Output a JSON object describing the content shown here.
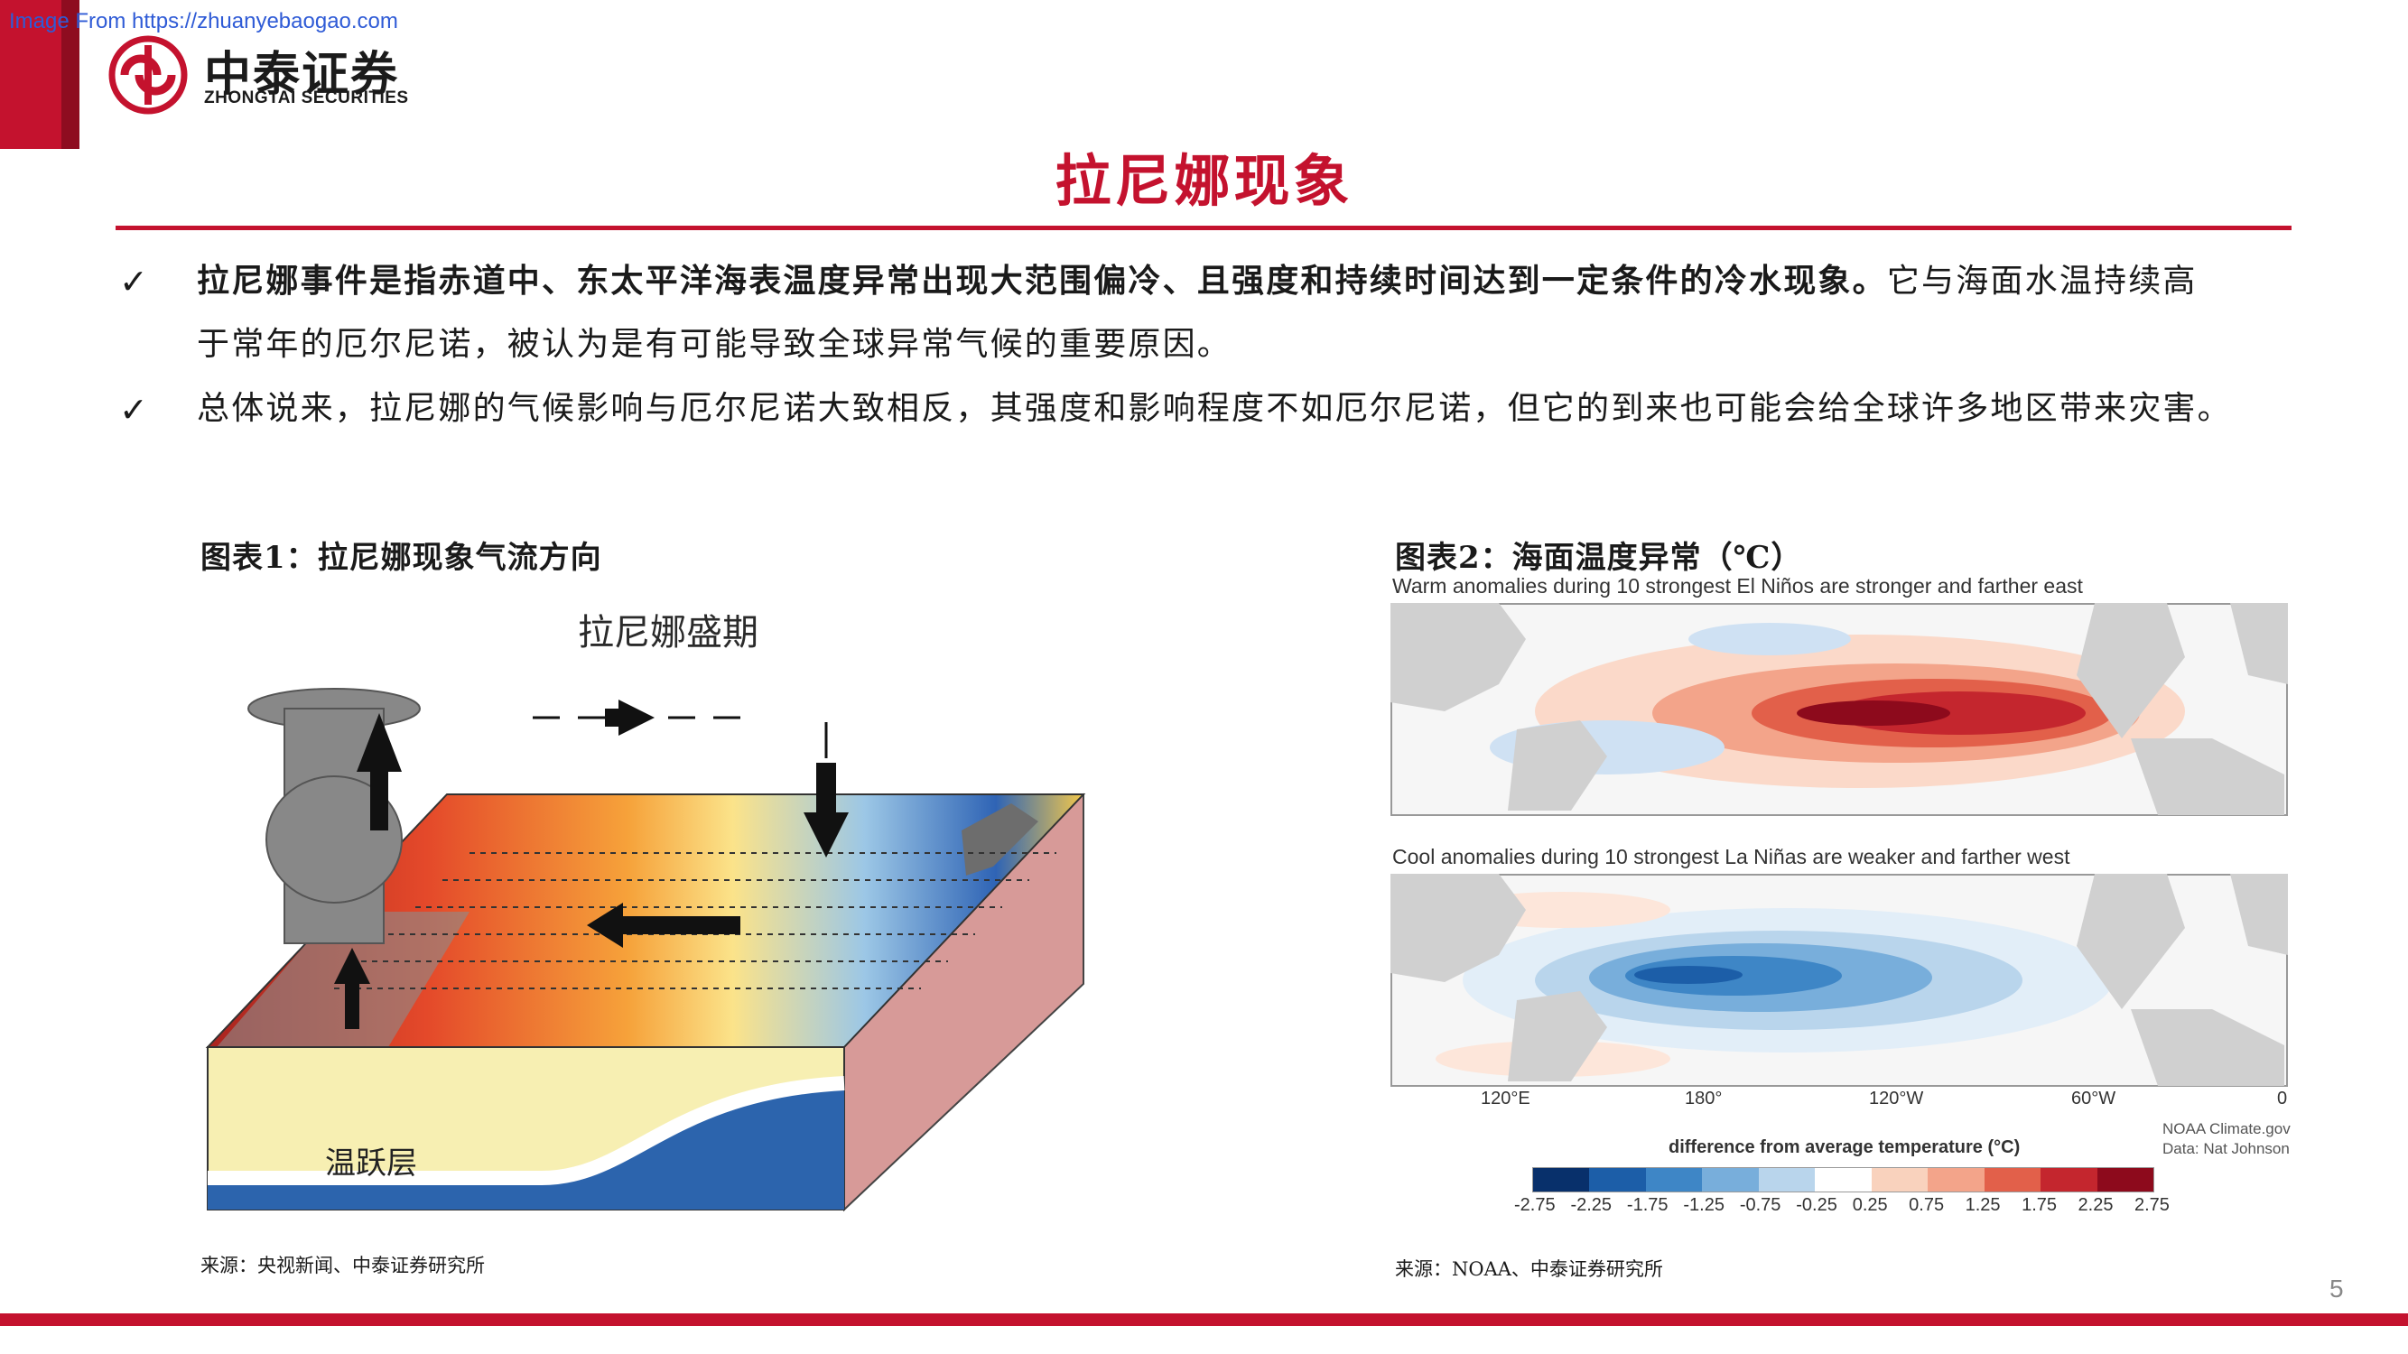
{
  "watermark": "Image From https://zhuanyebaogao.com",
  "brand": {
    "name_cn": "中泰证券",
    "name_en": "ZHONGTAI SECURITIES",
    "color": "#c4122e"
  },
  "title": "拉尼娜现象",
  "bullets": [
    {
      "check": "✓",
      "bold_text": "拉尼娜事件是指赤道中、东太平洋海表温度异常出现大范围偏冷、且强度和持续时间达到一定条件的冷水现象。",
      "line1_rest": "它与海面水温持续高",
      "line2": "于常年的厄尔尼诺，被认为是有可能导致全球异常气候的重要原因。"
    },
    {
      "check": "✓",
      "text": "总体说来，拉尼娜的气候影响与厄尔尼诺大致相反，其强度和影响程度不如厄尔尼诺，但它的到来也可能会给全球许多地区带来灾害。"
    }
  ],
  "figure1": {
    "title": "图表1：拉尼娜现象气流方向",
    "diagram_heading": "拉尼娜盛期",
    "layer_label": "温跃层",
    "source": "来源：央视新闻、中泰证券研究所"
  },
  "figure2": {
    "title": "图表2：海面温度异常（℃）",
    "map1_caption": "Warm anomalies during 10 strongest El Niños are stronger and farther east",
    "map2_caption": "Cool anomalies during 10 strongest La Niñas are weaker and farther west",
    "x_ticks": [
      "120°E",
      "180°",
      "120°W",
      "60°W",
      "0"
    ],
    "legend_title": "difference from average temperature (°C)",
    "scale_values": [
      "-2.75",
      "-2.25",
      "-1.75",
      "-1.25",
      "-0.75",
      "-0.25",
      "0.25",
      "0.75",
      "1.25",
      "1.75",
      "2.25",
      "2.75"
    ],
    "scale_colors": [
      "#08306b",
      "#1c5ea8",
      "#3e86c6",
      "#78aedb",
      "#b9d5ec",
      "#ffffff",
      "#f9d2bd",
      "#f3a48a",
      "#e2604a",
      "#c4262e",
      "#8d0a1c"
    ],
    "credit_line1": "NOAA Climate.gov",
    "credit_line2": "Data: Nat Johnson",
    "source": "来源：NOAA、中泰证券研究所"
  },
  "page_number": "5"
}
